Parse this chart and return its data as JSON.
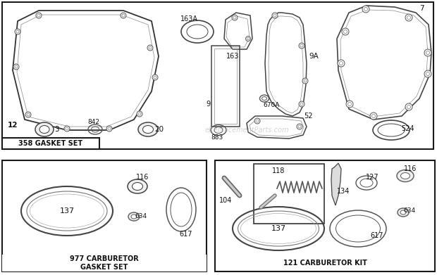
{
  "bg_color": "#ffffff",
  "border_color": "#1a1a1a",
  "text_color": "#111111",
  "section1_label": "358 GASKET SET",
  "section2_label": "977 CARBURETOR\nGASKET SET",
  "section3_label": "121 CARBURETOR KIT",
  "watermark": "eReplacementParts.com"
}
